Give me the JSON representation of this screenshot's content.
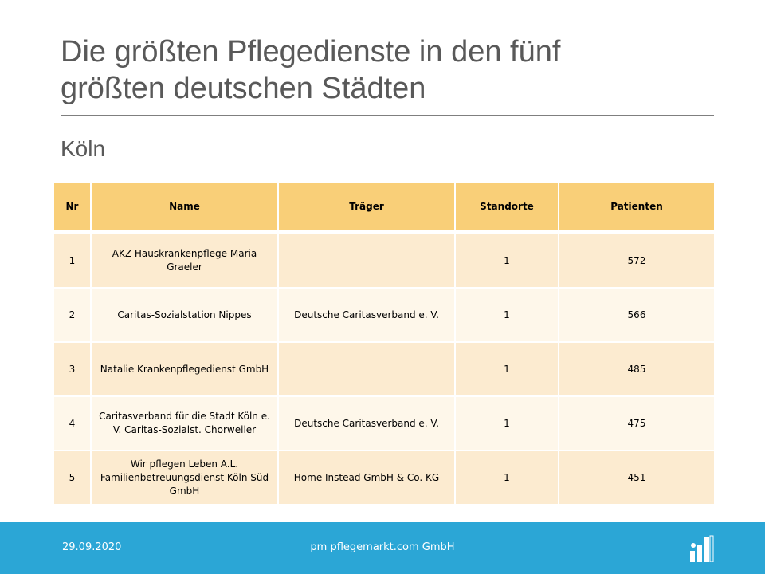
{
  "slide": {
    "title_line1": "Die größten Pflegedienste in den fünf",
    "title_line2": "größten deutschen Städten",
    "subtitle": "Köln"
  },
  "table": {
    "headers": [
      "Nr",
      "Name",
      "Träger",
      "Standorte",
      "Patienten"
    ],
    "rows": [
      {
        "nr": "1",
        "name": "AKZ Hauskrankenpflege Maria Graeler",
        "traeger": "",
        "standorte": "1",
        "patienten": "572"
      },
      {
        "nr": "2",
        "name": "Caritas-Sozialstation Nippes",
        "traeger": "Deutsche Caritasverband e. V.",
        "standorte": "1",
        "patienten": "566"
      },
      {
        "nr": "3",
        "name": "Natalie Krankenpflegedienst GmbH",
        "traeger": "",
        "standorte": "1",
        "patienten": "485"
      },
      {
        "nr": "4",
        "name": "Caritasverband für die Stadt Köln e. V. Caritas-Sozialst. Chorweiler",
        "traeger": "Deutsche Caritasverband e. V.",
        "standorte": "1",
        "patienten": "475"
      },
      {
        "nr": "5",
        "name": "Wir pflegen Leben A.L. Familienbetreuungsdienst Köln Süd GmbH",
        "traeger": "Home Instead GmbH & Co. KG",
        "standorte": "1",
        "patienten": "451"
      }
    ]
  },
  "footer": {
    "date": "29.09.2020",
    "company": "pm pflegemarkt.com GmbH",
    "logo_icon": "pflegemarkt-logo-icon"
  },
  "colors": {
    "header_fill": "#f9cf78",
    "row_odd": "#fcebd0",
    "row_even": "#fef7ea",
    "footer_bar": "#2ba6d6",
    "title_text": "#595959"
  }
}
